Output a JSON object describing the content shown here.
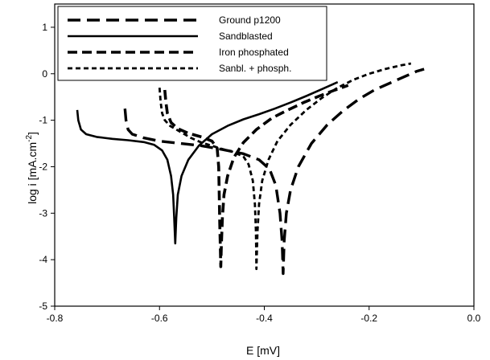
{
  "chart_data": {
    "type": "line",
    "xlabel": "E [mV]",
    "ylabel": "log i [mA.cm-2]",
    "ylabel_parts": {
      "text": "log i [mA.cm",
      "sup": "-2",
      "end": "]"
    },
    "xlim": [
      -0.8,
      0.0
    ],
    "ylim": [
      -5,
      1.5
    ],
    "x_ticks": [
      -0.8,
      -0.6,
      -0.4,
      -0.2,
      0.0
    ],
    "x_tick_labels": [
      "-0.8",
      "-0.6",
      "-0.4",
      "-0.2",
      "0.0"
    ],
    "y_ticks": [
      -5,
      -4,
      -3,
      -2,
      -1,
      0,
      1
    ],
    "y_tick_labels": [
      "-5",
      "-4",
      "-3",
      "-2",
      "-1",
      "0",
      "1"
    ],
    "grid": false,
    "legend_position": "top-left",
    "series": [
      {
        "name": "Ground p1200",
        "line_style": "long-dash",
        "color": "#000000",
        "points": [
          [
            -0.666,
            -0.75
          ],
          [
            -0.664,
            -1.0
          ],
          [
            -0.66,
            -1.2
          ],
          [
            -0.652,
            -1.3
          ],
          [
            -0.63,
            -1.38
          ],
          [
            -0.6,
            -1.45
          ],
          [
            -0.56,
            -1.5
          ],
          [
            -0.52,
            -1.55
          ],
          [
            -0.48,
            -1.63
          ],
          [
            -0.44,
            -1.72
          ],
          [
            -0.41,
            -1.85
          ],
          [
            -0.39,
            -2.05
          ],
          [
            -0.378,
            -2.4
          ],
          [
            -0.37,
            -3.0
          ],
          [
            -0.366,
            -3.6
          ],
          [
            -0.364,
            -4.3
          ],
          [
            -0.362,
            -3.6
          ],
          [
            -0.358,
            -3.0
          ],
          [
            -0.35,
            -2.5
          ],
          [
            -0.335,
            -2.0
          ],
          [
            -0.31,
            -1.5
          ],
          [
            -0.28,
            -1.1
          ],
          [
            -0.25,
            -0.8
          ],
          [
            -0.22,
            -0.55
          ],
          [
            -0.19,
            -0.35
          ],
          [
            -0.16,
            -0.2
          ],
          [
            -0.13,
            -0.05
          ],
          [
            -0.11,
            0.05
          ],
          [
            -0.095,
            0.1
          ]
        ]
      },
      {
        "name": "Sandblasted",
        "line_style": "solid",
        "color": "#000000",
        "points": [
          [
            -0.757,
            -0.78
          ],
          [
            -0.755,
            -1.0
          ],
          [
            -0.75,
            -1.2
          ],
          [
            -0.74,
            -1.3
          ],
          [
            -0.72,
            -1.36
          ],
          [
            -0.69,
            -1.4
          ],
          [
            -0.66,
            -1.43
          ],
          [
            -0.63,
            -1.47
          ],
          [
            -0.61,
            -1.53
          ],
          [
            -0.595,
            -1.65
          ],
          [
            -0.585,
            -1.85
          ],
          [
            -0.578,
            -2.2
          ],
          [
            -0.574,
            -2.6
          ],
          [
            -0.572,
            -3.1
          ],
          [
            -0.57,
            -3.65
          ],
          [
            -0.568,
            -3.1
          ],
          [
            -0.565,
            -2.6
          ],
          [
            -0.558,
            -2.2
          ],
          [
            -0.545,
            -1.85
          ],
          [
            -0.525,
            -1.55
          ],
          [
            -0.5,
            -1.3
          ],
          [
            -0.47,
            -1.12
          ],
          [
            -0.44,
            -0.98
          ],
          [
            -0.41,
            -0.87
          ],
          [
            -0.38,
            -0.75
          ],
          [
            -0.35,
            -0.62
          ],
          [
            -0.32,
            -0.48
          ],
          [
            -0.29,
            -0.33
          ],
          [
            -0.26,
            -0.18
          ]
        ]
      },
      {
        "name": "Iron phosphated",
        "line_style": "dash",
        "color": "#000000",
        "points": [
          [
            -0.59,
            -0.35
          ],
          [
            -0.588,
            -0.6
          ],
          [
            -0.585,
            -0.85
          ],
          [
            -0.578,
            -1.05
          ],
          [
            -0.565,
            -1.18
          ],
          [
            -0.545,
            -1.28
          ],
          [
            -0.52,
            -1.36
          ],
          [
            -0.5,
            -1.45
          ],
          [
            -0.49,
            -1.6
          ],
          [
            -0.487,
            -2.0
          ],
          [
            -0.486,
            -2.6
          ],
          [
            -0.485,
            -3.2
          ],
          [
            -0.484,
            -3.7
          ],
          [
            -0.483,
            -4.15
          ],
          [
            -0.482,
            -3.7
          ],
          [
            -0.48,
            -3.1
          ],
          [
            -0.477,
            -2.6
          ],
          [
            -0.47,
            -2.2
          ],
          [
            -0.458,
            -1.8
          ],
          [
            -0.44,
            -1.48
          ],
          [
            -0.415,
            -1.2
          ],
          [
            -0.385,
            -0.95
          ],
          [
            -0.355,
            -0.78
          ],
          [
            -0.325,
            -0.62
          ],
          [
            -0.295,
            -0.48
          ],
          [
            -0.265,
            -0.35
          ],
          [
            -0.24,
            -0.25
          ]
        ]
      },
      {
        "name": "Sanbl. + phosph.",
        "line_style": "short-dash",
        "color": "#000000",
        "points": [
          [
            -0.6,
            -0.3
          ],
          [
            -0.598,
            -0.6
          ],
          [
            -0.595,
            -0.85
          ],
          [
            -0.59,
            -1.0
          ],
          [
            -0.58,
            -1.12
          ],
          [
            -0.56,
            -1.25
          ],
          [
            -0.54,
            -1.38
          ],
          [
            -0.52,
            -1.48
          ],
          [
            -0.5,
            -1.55
          ],
          [
            -0.48,
            -1.62
          ],
          [
            -0.46,
            -1.68
          ],
          [
            -0.44,
            -1.78
          ],
          [
            -0.43,
            -1.95
          ],
          [
            -0.422,
            -2.3
          ],
          [
            -0.418,
            -2.8
          ],
          [
            -0.416,
            -3.4
          ],
          [
            -0.415,
            -4.2
          ],
          [
            -0.413,
            -3.4
          ],
          [
            -0.41,
            -2.8
          ],
          [
            -0.404,
            -2.3
          ],
          [
            -0.392,
            -1.85
          ],
          [
            -0.375,
            -1.45
          ],
          [
            -0.35,
            -1.1
          ],
          [
            -0.32,
            -0.78
          ],
          [
            -0.29,
            -0.52
          ],
          [
            -0.26,
            -0.3
          ],
          [
            -0.23,
            -0.13
          ],
          [
            -0.2,
            0.0
          ],
          [
            -0.17,
            0.1
          ],
          [
            -0.14,
            0.18
          ],
          [
            -0.12,
            0.22
          ]
        ]
      }
    ]
  }
}
